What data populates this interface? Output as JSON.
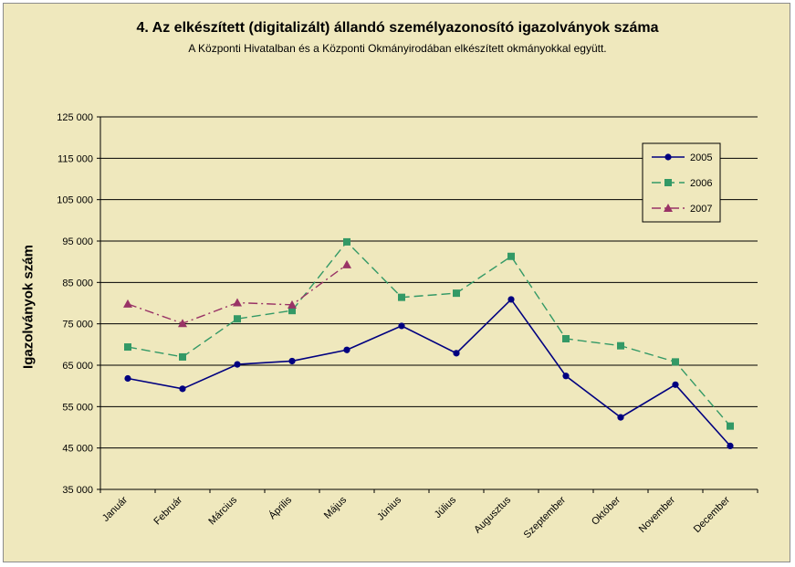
{
  "chart_data": {
    "type": "line",
    "title": "4. Az elkészített (digitalizált) állandó személyazonosító igazolványok száma",
    "subtitle": "A Központi Hivatalban és a Központi Okmányirodában elkészített okmányokkal együtt.",
    "ylabel": "Igazolványok szám",
    "xlabel": "",
    "ylim": [
      35000,
      125000
    ],
    "yticks": [
      35000,
      45000,
      55000,
      65000,
      75000,
      85000,
      95000,
      105000,
      115000,
      125000
    ],
    "ytick_labels": [
      "35 000",
      "45 000",
      "55 000",
      "65 000",
      "75 000",
      "85 000",
      "95 000",
      "105 000",
      "115 000",
      "125 000"
    ],
    "categories": [
      "Január",
      "Február",
      "Március",
      "Április",
      "Május",
      "Június",
      "Július",
      "Augusztus",
      "Szeptember",
      "Október",
      "November",
      "December"
    ],
    "grid": true,
    "legend_position": "top-right",
    "series": [
      {
        "name": "2005",
        "color": "#000080",
        "marker": "circle",
        "dash": "solid",
        "values": [
          61800,
          59300,
          65200,
          66000,
          68700,
          74500,
          67900,
          80900,
          62400,
          52400,
          60300,
          45500
        ]
      },
      {
        "name": "2006",
        "color": "#339966",
        "marker": "square",
        "dash": "dashed",
        "values": [
          69400,
          67000,
          76200,
          78200,
          94800,
          81400,
          82400,
          91300,
          71400,
          69700,
          65800,
          50300
        ]
      },
      {
        "name": "2007",
        "color": "#993366",
        "marker": "triangle",
        "dash": "dashdot",
        "values": [
          79800,
          75100,
          80100,
          79600,
          89300,
          null,
          null,
          null,
          null,
          null,
          null,
          null
        ]
      }
    ]
  }
}
